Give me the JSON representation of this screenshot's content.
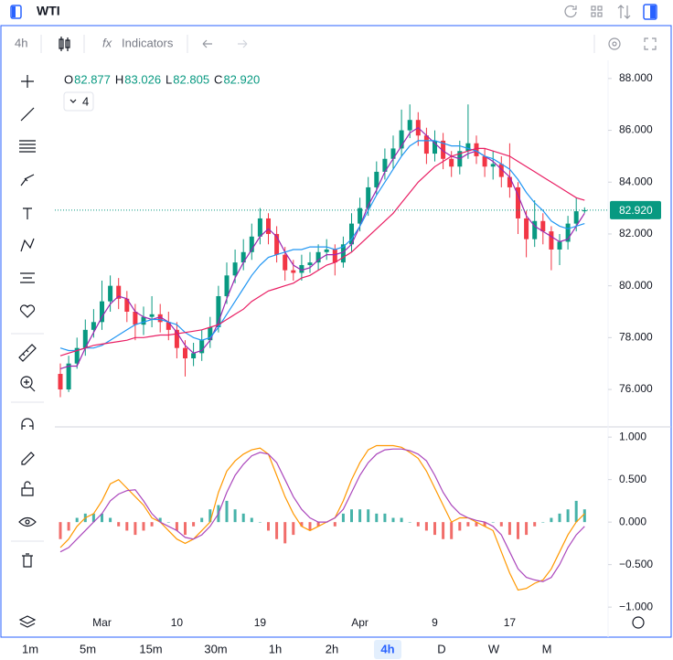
{
  "header": {
    "symbol": "WTI"
  },
  "toolbar": {
    "interval": "4h",
    "indicators": "Indicators"
  },
  "timeframes": {
    "items": [
      "1m",
      "5m",
      "15m",
      "30m",
      "1h",
      "2h",
      "4h",
      "D",
      "W",
      "M"
    ],
    "selected": "4h"
  },
  "chart_data": [
    {
      "type": "candlestick",
      "categories": [
        null,
        null,
        null,
        null,
        null,
        "Mar",
        null,
        null,
        null,
        null,
        null,
        null,
        null,
        null,
        "10",
        null,
        null,
        null,
        null,
        null,
        null,
        null,
        null,
        null,
        "19",
        null,
        null,
        null,
        null,
        null,
        null,
        null,
        null,
        null,
        null,
        null,
        "Apr",
        null,
        null,
        null,
        null,
        null,
        null,
        null,
        null,
        "9",
        null,
        null,
        null,
        null,
        null,
        null,
        null,
        null,
        "17",
        null,
        null,
        null,
        null,
        null,
        null,
        null,
        null,
        null
      ],
      "open": [
        76.6,
        76.0,
        77.0,
        77.6,
        78.3,
        78.6,
        79.4,
        80.0,
        79.5,
        79.0,
        78.5,
        78.8,
        78.9,
        78.6,
        78.3,
        77.6,
        77.2,
        77.4,
        77.9,
        78.4,
        79.6,
        80.4,
        80.9,
        81.3,
        81.9,
        82.6,
        82.0,
        81.2,
        80.6,
        80.5,
        80.8,
        80.9,
        81.3,
        81.4,
        80.9,
        81.6,
        82.4,
        83.0,
        83.8,
        84.4,
        84.9,
        85.3,
        86.0,
        86.4,
        85.8,
        85.1,
        85.6,
        84.9,
        84.6,
        85.2,
        85.5,
        85.0,
        84.6,
        84.7,
        84.2,
        83.8,
        82.6,
        81.8,
        82.5,
        82.1,
        81.4,
        81.7,
        82.4,
        82.877
      ],
      "high": [
        77.0,
        77.3,
        78.0,
        78.7,
        79.1,
        80.2,
        80.4,
        80.3,
        79.8,
        79.3,
        79.2,
        79.6,
        79.3,
        79.0,
        78.6,
        77.9,
        77.8,
        78.3,
        78.8,
        80.0,
        80.9,
        81.4,
        81.8,
        82.4,
        83.0,
        82.8,
        82.3,
        81.5,
        81.0,
        81.2,
        81.3,
        81.6,
        81.8,
        81.6,
        81.9,
        82.8,
        83.4,
        84.2,
        84.8,
        85.3,
        85.8,
        86.8,
        87.0,
        86.7,
        86.1,
        86.0,
        85.9,
        85.2,
        85.6,
        87.0,
        85.8,
        85.3,
        85.2,
        85.0,
        85.5,
        84.0,
        82.9,
        83.3,
        82.8,
        82.3,
        82.0,
        82.7,
        83.4,
        83.026
      ],
      "low": [
        75.7,
        75.9,
        76.8,
        77.3,
        78.0,
        78.3,
        79.0,
        79.1,
        78.6,
        77.9,
        78.1,
        78.4,
        78.2,
        77.9,
        77.2,
        76.5,
        76.9,
        77.1,
        77.6,
        78.2,
        79.3,
        80.1,
        80.6,
        81.0,
        81.6,
        81.6,
        80.9,
        80.2,
        80.2,
        80.2,
        80.5,
        80.6,
        81.0,
        80.4,
        80.7,
        81.3,
        82.1,
        82.7,
        83.5,
        84.1,
        84.5,
        85.0,
        85.7,
        85.4,
        84.7,
        84.8,
        84.5,
        84.2,
        84.3,
        84.9,
        84.7,
        84.2,
        84.1,
        83.8,
        83.4,
        82.0,
        81.1,
        81.5,
        81.6,
        80.6,
        80.8,
        81.4,
        82.1,
        82.805
      ],
      "close": [
        76.0,
        77.0,
        77.6,
        78.3,
        78.6,
        79.4,
        80.0,
        79.5,
        79.0,
        78.5,
        78.8,
        78.9,
        78.6,
        78.3,
        77.6,
        77.2,
        77.4,
        77.9,
        78.4,
        79.6,
        80.4,
        80.9,
        81.3,
        81.9,
        82.6,
        82.0,
        81.2,
        80.6,
        80.5,
        80.8,
        80.9,
        81.3,
        81.4,
        80.9,
        81.6,
        82.4,
        83.0,
        83.8,
        84.4,
        84.9,
        85.3,
        86.0,
        86.4,
        85.8,
        85.1,
        85.6,
        84.9,
        84.6,
        85.2,
        85.5,
        85.0,
        84.6,
        84.7,
        84.2,
        83.8,
        82.6,
        81.8,
        82.5,
        82.1,
        81.4,
        81.7,
        82.4,
        82.877,
        82.92
      ],
      "up_color": "#089981",
      "down_color": "#f23645",
      "series": [
        {
          "color": "#9c27b0",
          "values": [
            76.8,
            76.9,
            76.9,
            77.6,
            78.2,
            78.8,
            79.3,
            79.6,
            79.5,
            79.0,
            78.8,
            78.7,
            78.8,
            78.6,
            78.2,
            77.7,
            77.4,
            77.5,
            77.9,
            78.6,
            79.5,
            80.3,
            80.9,
            81.4,
            81.9,
            82.2,
            81.9,
            81.3,
            80.8,
            80.6,
            80.7,
            81.0,
            81.2,
            81.2,
            81.3,
            81.6,
            82.3,
            83.1,
            83.7,
            84.4,
            84.9,
            85.4,
            85.9,
            86.1,
            85.8,
            85.5,
            85.2,
            85.0,
            84.9,
            85.1,
            85.2,
            85.0,
            84.8,
            84.5,
            84.2,
            83.5,
            82.7,
            82.3,
            82.1,
            81.9,
            81.7,
            81.8,
            82.3,
            82.8
          ]
        },
        {
          "color": "#2196f3",
          "values": [
            77.6,
            77.5,
            77.5,
            77.6,
            77.6,
            77.7,
            77.9,
            78.1,
            78.3,
            78.5,
            78.6,
            78.7,
            78.7,
            78.6,
            78.5,
            78.2,
            78.0,
            77.9,
            78.0,
            78.4,
            78.9,
            79.4,
            79.9,
            80.4,
            80.8,
            81.1,
            81.2,
            81.3,
            81.4,
            81.4,
            81.5,
            81.5,
            81.5,
            81.4,
            81.5,
            81.8,
            82.3,
            82.9,
            83.5,
            84.0,
            84.5,
            85.0,
            85.4,
            85.6,
            85.6,
            85.6,
            85.5,
            85.4,
            85.4,
            85.3,
            85.2,
            85.0,
            84.9,
            84.7,
            84.5,
            84.1,
            83.6,
            83.2,
            82.9,
            82.5,
            82.3,
            82.2,
            82.3,
            82.4
          ]
        },
        {
          "color": "#e91e63",
          "values": [
            77.3,
            77.4,
            77.5,
            77.6,
            77.7,
            77.75,
            77.8,
            77.85,
            77.9,
            78.0,
            78.0,
            78.05,
            78.1,
            78.1,
            78.15,
            78.2,
            78.25,
            78.3,
            78.4,
            78.5,
            78.7,
            78.9,
            79.1,
            79.4,
            79.6,
            79.8,
            79.9,
            80.0,
            80.1,
            80.3,
            80.4,
            80.6,
            80.8,
            80.9,
            81.1,
            81.3,
            81.6,
            81.9,
            82.2,
            82.5,
            82.8,
            83.2,
            83.6,
            84.0,
            84.3,
            84.6,
            84.8,
            85.0,
            85.1,
            85.2,
            85.3,
            85.3,
            85.2,
            85.1,
            85.0,
            84.8,
            84.6,
            84.4,
            84.2,
            84.0,
            83.8,
            83.6,
            83.4,
            83.3
          ]
        }
      ],
      "ylim": [
        74.59,
        88.56
      ],
      "yticks": [
        {
          "value": 76,
          "label": "76.000"
        },
        {
          "value": 78,
          "label": "78.000"
        },
        {
          "value": 80,
          "label": "80.000"
        },
        {
          "value": 82,
          "label": "82.000"
        },
        {
          "value": 84,
          "label": "84.000"
        },
        {
          "value": 86,
          "label": "86.000"
        },
        {
          "value": 88,
          "label": "88.000"
        }
      ],
      "last_price": {
        "value": 82.92,
        "label": "82.920",
        "color": "#089981"
      },
      "ohlc_legend": [
        {
          "label": "O",
          "value_label": "82.877"
        },
        {
          "label": "H",
          "value_label": "83.026"
        },
        {
          "label": "L",
          "value_label": "82.805"
        },
        {
          "label": "C",
          "value_label": "82.920"
        }
      ],
      "indicator_count": 4
    },
    {
      "type": "oscillator",
      "ylim": [
        -1.02,
        1.12
      ],
      "yticks": [
        {
          "value": 1,
          "label": "1.000"
        },
        {
          "value": 0.5,
          "label": "0.500"
        },
        {
          "value": 0,
          "label": "0.000"
        },
        {
          "value": -0.5,
          "label": "−0.500"
        },
        {
          "value": -1,
          "label": "−1.000"
        }
      ],
      "histogram": {
        "positive_color": "#26a69a",
        "negative_color": "#ef5350",
        "values": [
          -0.2,
          -0.1,
          0.05,
          0.1,
          0.1,
          0.1,
          0.05,
          -0.05,
          -0.1,
          -0.15,
          -0.1,
          -0.05,
          0.05,
          0.0,
          -0.1,
          -0.15,
          -0.05,
          0.05,
          0.15,
          0.2,
          0.25,
          0.15,
          0.1,
          0.05,
          0.0,
          -0.1,
          -0.2,
          -0.25,
          -0.15,
          -0.05,
          -0.1,
          -0.05,
          0.0,
          -0.05,
          0.1,
          0.15,
          0.15,
          0.15,
          0.1,
          0.1,
          0.05,
          0.05,
          0.0,
          -0.05,
          -0.1,
          -0.15,
          -0.2,
          -0.2,
          -0.1,
          -0.05,
          -0.05,
          -0.05,
          0.0,
          -0.05,
          -0.15,
          -0.2,
          -0.15,
          -0.05,
          0.0,
          0.05,
          0.1,
          0.15,
          0.25,
          0.15
        ]
      },
      "series": [
        {
          "color": "#ff9800",
          "values": [
            -0.3,
            -0.2,
            -0.05,
            0.05,
            0.1,
            0.25,
            0.45,
            0.5,
            0.4,
            0.3,
            0.2,
            0.05,
            0.0,
            -0.1,
            -0.2,
            -0.25,
            -0.2,
            -0.1,
            0.0,
            0.35,
            0.6,
            0.72,
            0.8,
            0.85,
            0.87,
            0.8,
            0.55,
            0.3,
            0.1,
            -0.05,
            -0.1,
            -0.05,
            0.0,
            0.05,
            0.25,
            0.5,
            0.7,
            0.85,
            0.9,
            0.9,
            0.9,
            0.88,
            0.82,
            0.75,
            0.6,
            0.4,
            0.2,
            0.0,
            0.05,
            0.05,
            0.0,
            -0.05,
            -0.1,
            -0.35,
            -0.6,
            -0.8,
            -0.78,
            -0.72,
            -0.68,
            -0.55,
            -0.35,
            -0.15,
            0.0,
            0.1
          ]
        },
        {
          "color": "#ab47bc",
          "values": [
            -0.35,
            -0.3,
            -0.2,
            -0.1,
            0.0,
            0.1,
            0.25,
            0.33,
            0.37,
            0.38,
            0.25,
            0.1,
            0.0,
            -0.05,
            -0.1,
            -0.18,
            -0.2,
            -0.15,
            -0.05,
            0.1,
            0.35,
            0.55,
            0.68,
            0.78,
            0.82,
            0.8,
            0.7,
            0.5,
            0.3,
            0.15,
            0.05,
            0.0,
            0.0,
            0.05,
            0.15,
            0.35,
            0.55,
            0.7,
            0.8,
            0.85,
            0.86,
            0.86,
            0.84,
            0.8,
            0.72,
            0.55,
            0.35,
            0.2,
            0.1,
            0.05,
            0.02,
            0.0,
            -0.05,
            -0.15,
            -0.35,
            -0.55,
            -0.65,
            -0.68,
            -0.7,
            -0.65,
            -0.5,
            -0.3,
            -0.15,
            -0.05
          ]
        }
      ]
    }
  ]
}
